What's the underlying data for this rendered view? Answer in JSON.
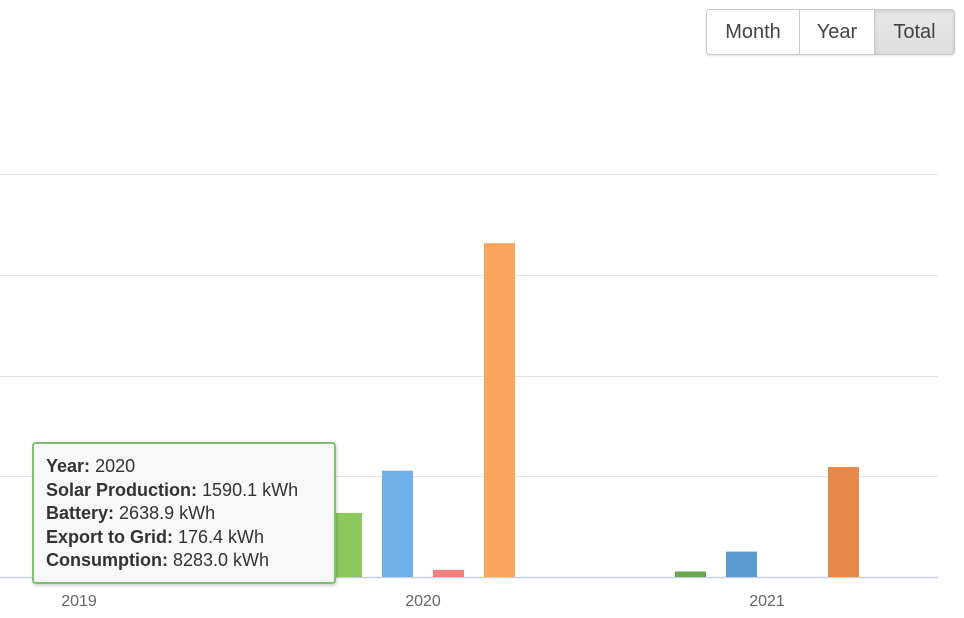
{
  "period_toggle": {
    "options": [
      "Month",
      "Year",
      "Total"
    ],
    "selected": "Total"
  },
  "chart_data": {
    "type": "bar",
    "categories": [
      "2019",
      "2020",
      "2021"
    ],
    "series": [
      {
        "name": "Solar Production",
        "color": "#8cc95d",
        "values": [
          null,
          1590.1,
          136
        ]
      },
      {
        "name": "Battery",
        "color": "#6fb0e8",
        "values": [
          null,
          2638.9,
          630
        ]
      },
      {
        "name": "Export to Grid",
        "color": "#f08080",
        "values": [
          null,
          176.4,
          0
        ]
      },
      {
        "name": "Consumption",
        "color": "#f9a45f",
        "values": [
          null,
          8283.0,
          2730
        ]
      }
    ],
    "series_colors_2021": [
      "#6aa84f",
      "#5b9bd5",
      "#f08080",
      "#e8884a"
    ],
    "ylim": [
      0,
      10000
    ],
    "ytick_values": [
      0,
      2500,
      5000,
      7500,
      10000
    ],
    "grid": true,
    "xlabel": "",
    "ylabel": ""
  },
  "tooltip": {
    "rows": [
      {
        "label": "Year:",
        "value": "2020"
      },
      {
        "label": "Solar Production:",
        "value": "1590.1 kWh"
      },
      {
        "label": "Battery:",
        "value": "2638.9 kWh"
      },
      {
        "label": "Export to Grid:",
        "value": "176.4 kWh"
      },
      {
        "label": "Consumption:",
        "value": "8283.0 kWh"
      }
    ],
    "border_color": "#7cc26e"
  }
}
